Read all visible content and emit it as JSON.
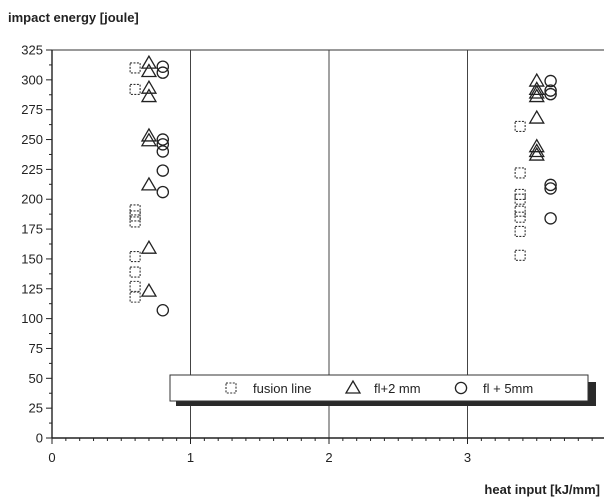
{
  "chart_data": {
    "type": "scatter",
    "ylabel": "impact energy [joule]",
    "xlabel": "heat input [kJ/mm]",
    "xlim": [
      0,
      4
    ],
    "ylim": [
      0,
      325
    ],
    "x_ticks": [
      "0",
      "1",
      "2",
      "3"
    ],
    "y_ticks": [
      "0",
      "25",
      "50",
      "75",
      "100",
      "125",
      "150",
      "175",
      "200",
      "225",
      "250",
      "275",
      "300",
      "325"
    ],
    "grid": "vertical lines at major x ticks",
    "legend_position": "bottom-right",
    "series": [
      {
        "name": "fusion line",
        "marker": "square-dashed",
        "points": [
          [
            0.6,
            310
          ],
          [
            0.6,
            292
          ],
          [
            0.6,
            191
          ],
          [
            0.6,
            186
          ],
          [
            0.6,
            181
          ],
          [
            0.6,
            152
          ],
          [
            0.6,
            139
          ],
          [
            0.6,
            127
          ],
          [
            0.6,
            118
          ],
          [
            3.38,
            261
          ],
          [
            3.38,
            222
          ],
          [
            3.38,
            204
          ],
          [
            3.38,
            200
          ],
          [
            3.38,
            190
          ],
          [
            3.38,
            185
          ],
          [
            3.38,
            173
          ],
          [
            3.38,
            153
          ]
        ]
      },
      {
        "name": "fl+2 mm",
        "marker": "triangle",
        "points": [
          [
            0.7,
            314
          ],
          [
            0.7,
            307
          ],
          [
            0.7,
            293
          ],
          [
            0.7,
            286
          ],
          [
            0.7,
            253
          ],
          [
            0.7,
            249
          ],
          [
            0.7,
            212
          ],
          [
            0.7,
            159
          ],
          [
            0.7,
            123
          ],
          [
            3.5,
            299
          ],
          [
            3.5,
            292
          ],
          [
            3.5,
            289
          ],
          [
            3.5,
            286
          ],
          [
            3.5,
            268
          ],
          [
            3.5,
            244
          ],
          [
            3.5,
            240
          ],
          [
            3.5,
            237
          ]
        ]
      },
      {
        "name": "fl + 5mm",
        "marker": "circle",
        "points": [
          [
            0.8,
            311
          ],
          [
            0.8,
            306
          ],
          [
            0.8,
            250
          ],
          [
            0.8,
            246
          ],
          [
            0.8,
            240
          ],
          [
            0.8,
            224
          ],
          [
            0.8,
            206
          ],
          [
            0.8,
            107
          ],
          [
            3.6,
            299
          ],
          [
            3.6,
            291
          ],
          [
            3.6,
            288
          ],
          [
            3.6,
            212
          ],
          [
            3.6,
            209
          ],
          [
            3.6,
            184
          ]
        ]
      }
    ]
  }
}
